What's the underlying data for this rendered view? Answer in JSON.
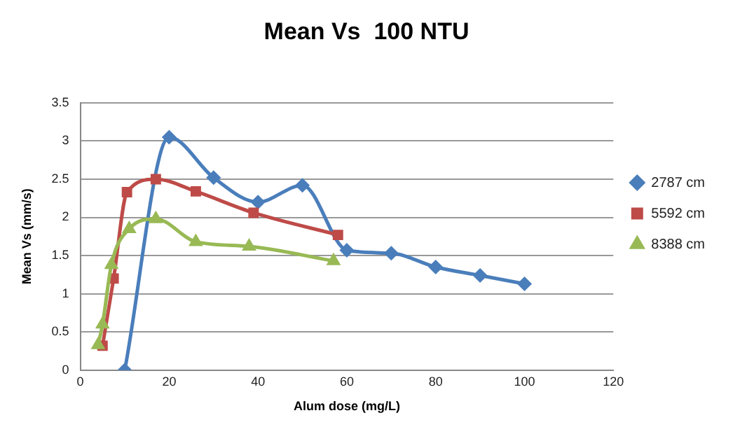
{
  "chart_data": {
    "type": "line",
    "title": "Mean Vs  100 NTU",
    "xlabel": "Alum dose (mg/L)",
    "ylabel": "Mean Vs (mm/s)",
    "xlim": [
      0,
      120
    ],
    "xticks": [
      0,
      20,
      40,
      60,
      80,
      100,
      120
    ],
    "ylim": [
      0,
      3.5
    ],
    "yticks": [
      0,
      0.5,
      1,
      1.5,
      2,
      2.5,
      3,
      3.5
    ],
    "grid": "y",
    "legend": "right",
    "series": [
      {
        "name": "2787 cm",
        "color": "#4a7ebb",
        "marker": "diamond",
        "x": [
          10,
          20,
          30,
          40,
          50,
          60,
          70,
          80,
          90,
          100
        ],
        "values": [
          0,
          3.05,
          2.52,
          2.2,
          2.42,
          1.57,
          1.53,
          1.35,
          1.24,
          1.13
        ]
      },
      {
        "name": "5592 cm",
        "color": "#be4b48",
        "marker": "square",
        "x": [
          5,
          7.5,
          10.5,
          17,
          26,
          39,
          58
        ],
        "values": [
          0.32,
          1.2,
          2.33,
          2.5,
          2.34,
          2.06,
          1.77
        ]
      },
      {
        "name": "8388 cm",
        "color": "#98b954",
        "marker": "triangle",
        "x": [
          4,
          5,
          7,
          11,
          17,
          26,
          38,
          57
        ],
        "values": [
          0.33,
          0.6,
          1.38,
          1.85,
          1.98,
          1.68,
          1.62,
          1.43
        ]
      }
    ]
  }
}
